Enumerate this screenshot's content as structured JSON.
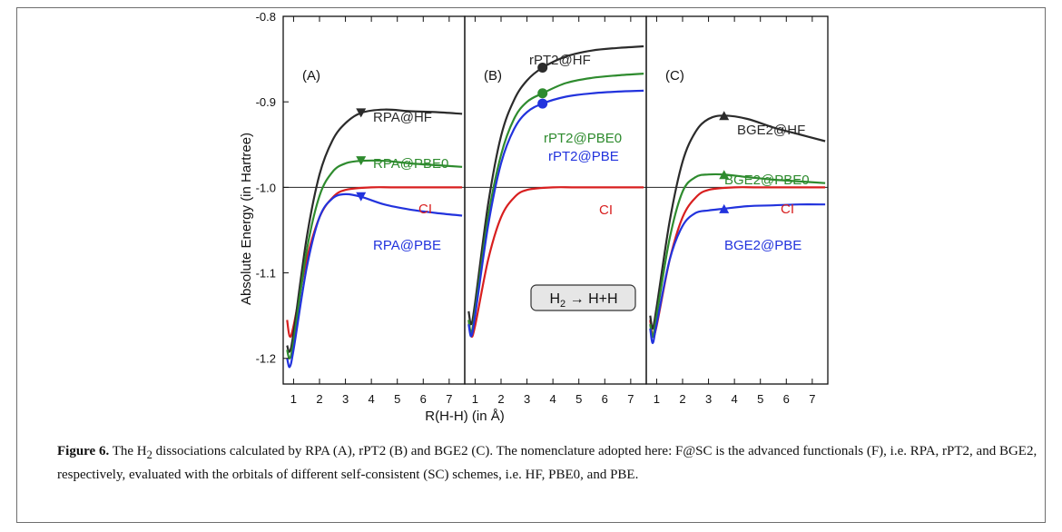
{
  "figure": {
    "ylabel": "Absolute Energy (in Hartree)",
    "xlabel": "R(H-H) (in Å)",
    "inset": {
      "text": "H",
      "sub": "2",
      "rest": " → H+H"
    },
    "yticks": [
      "-0.8",
      "-0.9",
      "-1.0",
      "-1.1",
      "-1.2"
    ],
    "xticks": [
      "1",
      "2",
      "3",
      "4",
      "5",
      "6",
      "7"
    ]
  },
  "caption": {
    "label": "Figure 6.",
    "text_before_sub": " The H",
    "sub": "2",
    "text_after_sub": " dissociations calculated by RPA (A), rPT2 (B) and BGE2 (C). The nomenclature adopted here: F@SC is the advanced functionals (F), i.e. RPA, rPT2, and BGE2, respectively, evaluated with the orbitals of different self-consistent (SC) schemes, i.e. HF, PBE0, and PBE."
  },
  "chart_data": [
    {
      "type": "line",
      "panel_label": "(A)",
      "xlim": [
        0.6,
        7.6
      ],
      "ylim": [
        -1.23,
        -0.8
      ],
      "hline": -1.0,
      "marker": "triangle-down",
      "series": [
        {
          "name": "RPA@HF",
          "color": "#2b2b2b",
          "x": [
            0.75,
            0.85,
            1.0,
            1.5,
            2.0,
            2.5,
            3.0,
            3.6,
            4.5,
            5.5,
            6.5,
            7.5
          ],
          "y": [
            -1.185,
            -1.192,
            -1.17,
            -1.06,
            -0.985,
            -0.945,
            -0.925,
            -0.913,
            -0.909,
            -0.911,
            -0.912,
            -0.914
          ],
          "marker_x": 3.6,
          "marker_y": -0.913
        },
        {
          "name": "RPA@PBE0",
          "color": "#2e8b2e",
          "x": [
            0.75,
            0.85,
            1.0,
            1.5,
            2.0,
            2.5,
            3.0,
            3.6,
            4.5,
            5.5,
            6.5,
            7.5
          ],
          "y": [
            -1.19,
            -1.2,
            -1.18,
            -1.075,
            -1.01,
            -0.982,
            -0.972,
            -0.969,
            -0.969,
            -0.972,
            -0.974,
            -0.976
          ],
          "marker_x": 3.6,
          "marker_y": -0.969
        },
        {
          "name": "CI",
          "color": "#d81f1f",
          "x": [
            0.75,
            0.85,
            1.0,
            1.5,
            2.0,
            2.5,
            3.0,
            4.0,
            5.0,
            7.5
          ],
          "y": [
            -1.155,
            -1.174,
            -1.162,
            -1.085,
            -1.035,
            -1.012,
            -1.003,
            -1.0,
            -1.0,
            -1.0
          ]
        },
        {
          "name": "RPA@PBE",
          "color": "#2233dd",
          "x": [
            0.75,
            0.85,
            1.0,
            1.5,
            2.0,
            2.5,
            3.0,
            3.6,
            4.5,
            5.5,
            6.5,
            7.5
          ],
          "y": [
            -1.2,
            -1.21,
            -1.19,
            -1.095,
            -1.035,
            -1.013,
            -1.008,
            -1.011,
            -1.02,
            -1.026,
            -1.03,
            -1.033
          ],
          "marker_x": 3.6,
          "marker_y": -1.011
        }
      ],
      "labels": [
        "RPA@HF",
        "RPA@PBE0",
        "CI",
        "RPA@PBE"
      ]
    },
    {
      "type": "line",
      "panel_label": "(B)",
      "xlim": [
        0.6,
        7.6
      ],
      "ylim": [
        -1.23,
        -0.8
      ],
      "hline": -1.0,
      "marker": "circle",
      "series": [
        {
          "name": "rPT2@HF",
          "color": "#2b2b2b",
          "x": [
            0.75,
            0.85,
            1.0,
            1.5,
            2.0,
            2.5,
            3.0,
            3.6,
            4.5,
            5.5,
            6.5,
            7.5
          ],
          "y": [
            -1.145,
            -1.16,
            -1.135,
            -1.02,
            -0.94,
            -0.898,
            -0.875,
            -0.86,
            -0.847,
            -0.84,
            -0.837,
            -0.835
          ],
          "marker_x": 3.6,
          "marker_y": -0.86
        },
        {
          "name": "rPT2@PBE0",
          "color": "#2e8b2e",
          "x": [
            0.75,
            0.85,
            1.0,
            1.5,
            2.0,
            2.5,
            3.0,
            3.6,
            4.5,
            5.5,
            6.5,
            7.5
          ],
          "y": [
            -1.155,
            -1.17,
            -1.145,
            -1.035,
            -0.962,
            -0.92,
            -0.9,
            -0.89,
            -0.878,
            -0.872,
            -0.869,
            -0.867
          ],
          "marker_x": 3.6,
          "marker_y": -0.89
        },
        {
          "name": "rPT2@PBE",
          "color": "#2233dd",
          "x": [
            0.75,
            0.85,
            1.0,
            1.5,
            2.0,
            2.5,
            3.0,
            3.6,
            4.5,
            5.5,
            6.5,
            7.5
          ],
          "y": [
            -1.16,
            -1.174,
            -1.15,
            -1.045,
            -0.972,
            -0.932,
            -0.912,
            -0.902,
            -0.894,
            -0.89,
            -0.888,
            -0.887
          ],
          "marker_x": 3.6,
          "marker_y": -0.902
        },
        {
          "name": "CI",
          "color": "#d81f1f",
          "x": [
            0.75,
            0.85,
            1.0,
            1.5,
            2.0,
            2.5,
            3.0,
            4.0,
            5.0,
            7.5
          ],
          "y": [
            -1.155,
            -1.174,
            -1.162,
            -1.085,
            -1.035,
            -1.012,
            -1.003,
            -1.0,
            -1.0,
            -1.0
          ]
        }
      ],
      "labels": [
        "rPT2@HF",
        "rPT2@PBE0",
        "rPT2@PBE",
        "CI"
      ]
    },
    {
      "type": "line",
      "panel_label": "(C)",
      "xlim": [
        0.6,
        7.6
      ],
      "ylim": [
        -1.23,
        -0.8
      ],
      "hline": -1.0,
      "marker": "triangle-up",
      "series": [
        {
          "name": "BGE2@HF",
          "color": "#2b2b2b",
          "x": [
            0.75,
            0.85,
            1.0,
            1.5,
            2.0,
            2.5,
            3.0,
            3.6,
            4.5,
            5.5,
            6.5,
            7.5
          ],
          "y": [
            -1.15,
            -1.165,
            -1.14,
            -1.04,
            -0.97,
            -0.935,
            -0.92,
            -0.916,
            -0.92,
            -0.93,
            -0.938,
            -0.946
          ],
          "marker_x": 3.6,
          "marker_y": -0.916
        },
        {
          "name": "BGE2@PBE0",
          "color": "#2e8b2e",
          "x": [
            0.75,
            0.85,
            1.0,
            1.5,
            2.0,
            2.5,
            3.0,
            3.6,
            4.5,
            5.5,
            6.5,
            7.5
          ],
          "y": [
            -1.16,
            -1.175,
            -1.15,
            -1.06,
            -1.005,
            -0.988,
            -0.985,
            -0.985,
            -0.988,
            -0.991,
            -0.993,
            -0.995
          ],
          "marker_x": 3.6,
          "marker_y": -0.985
        },
        {
          "name": "CI",
          "color": "#d81f1f",
          "x": [
            0.75,
            0.85,
            1.0,
            1.5,
            2.0,
            2.5,
            3.0,
            4.0,
            5.0,
            7.5
          ],
          "y": [
            -1.155,
            -1.174,
            -1.162,
            -1.085,
            -1.035,
            -1.012,
            -1.003,
            -1.0,
            -1.0,
            -1.0
          ]
        },
        {
          "name": "BGE2@PBE",
          "color": "#2233dd",
          "x": [
            0.75,
            0.85,
            1.0,
            1.5,
            2.0,
            2.5,
            3.0,
            3.6,
            4.5,
            5.5,
            6.5,
            7.5
          ],
          "y": [
            -1.165,
            -1.182,
            -1.16,
            -1.085,
            -1.045,
            -1.03,
            -1.027,
            -1.025,
            -1.022,
            -1.021,
            -1.02,
            -1.02
          ],
          "marker_x": 3.6,
          "marker_y": -1.025
        }
      ],
      "labels": [
        "BGE2@HF",
        "BGE2@PBE0",
        "CI",
        "BGE2@PBE"
      ]
    }
  ]
}
